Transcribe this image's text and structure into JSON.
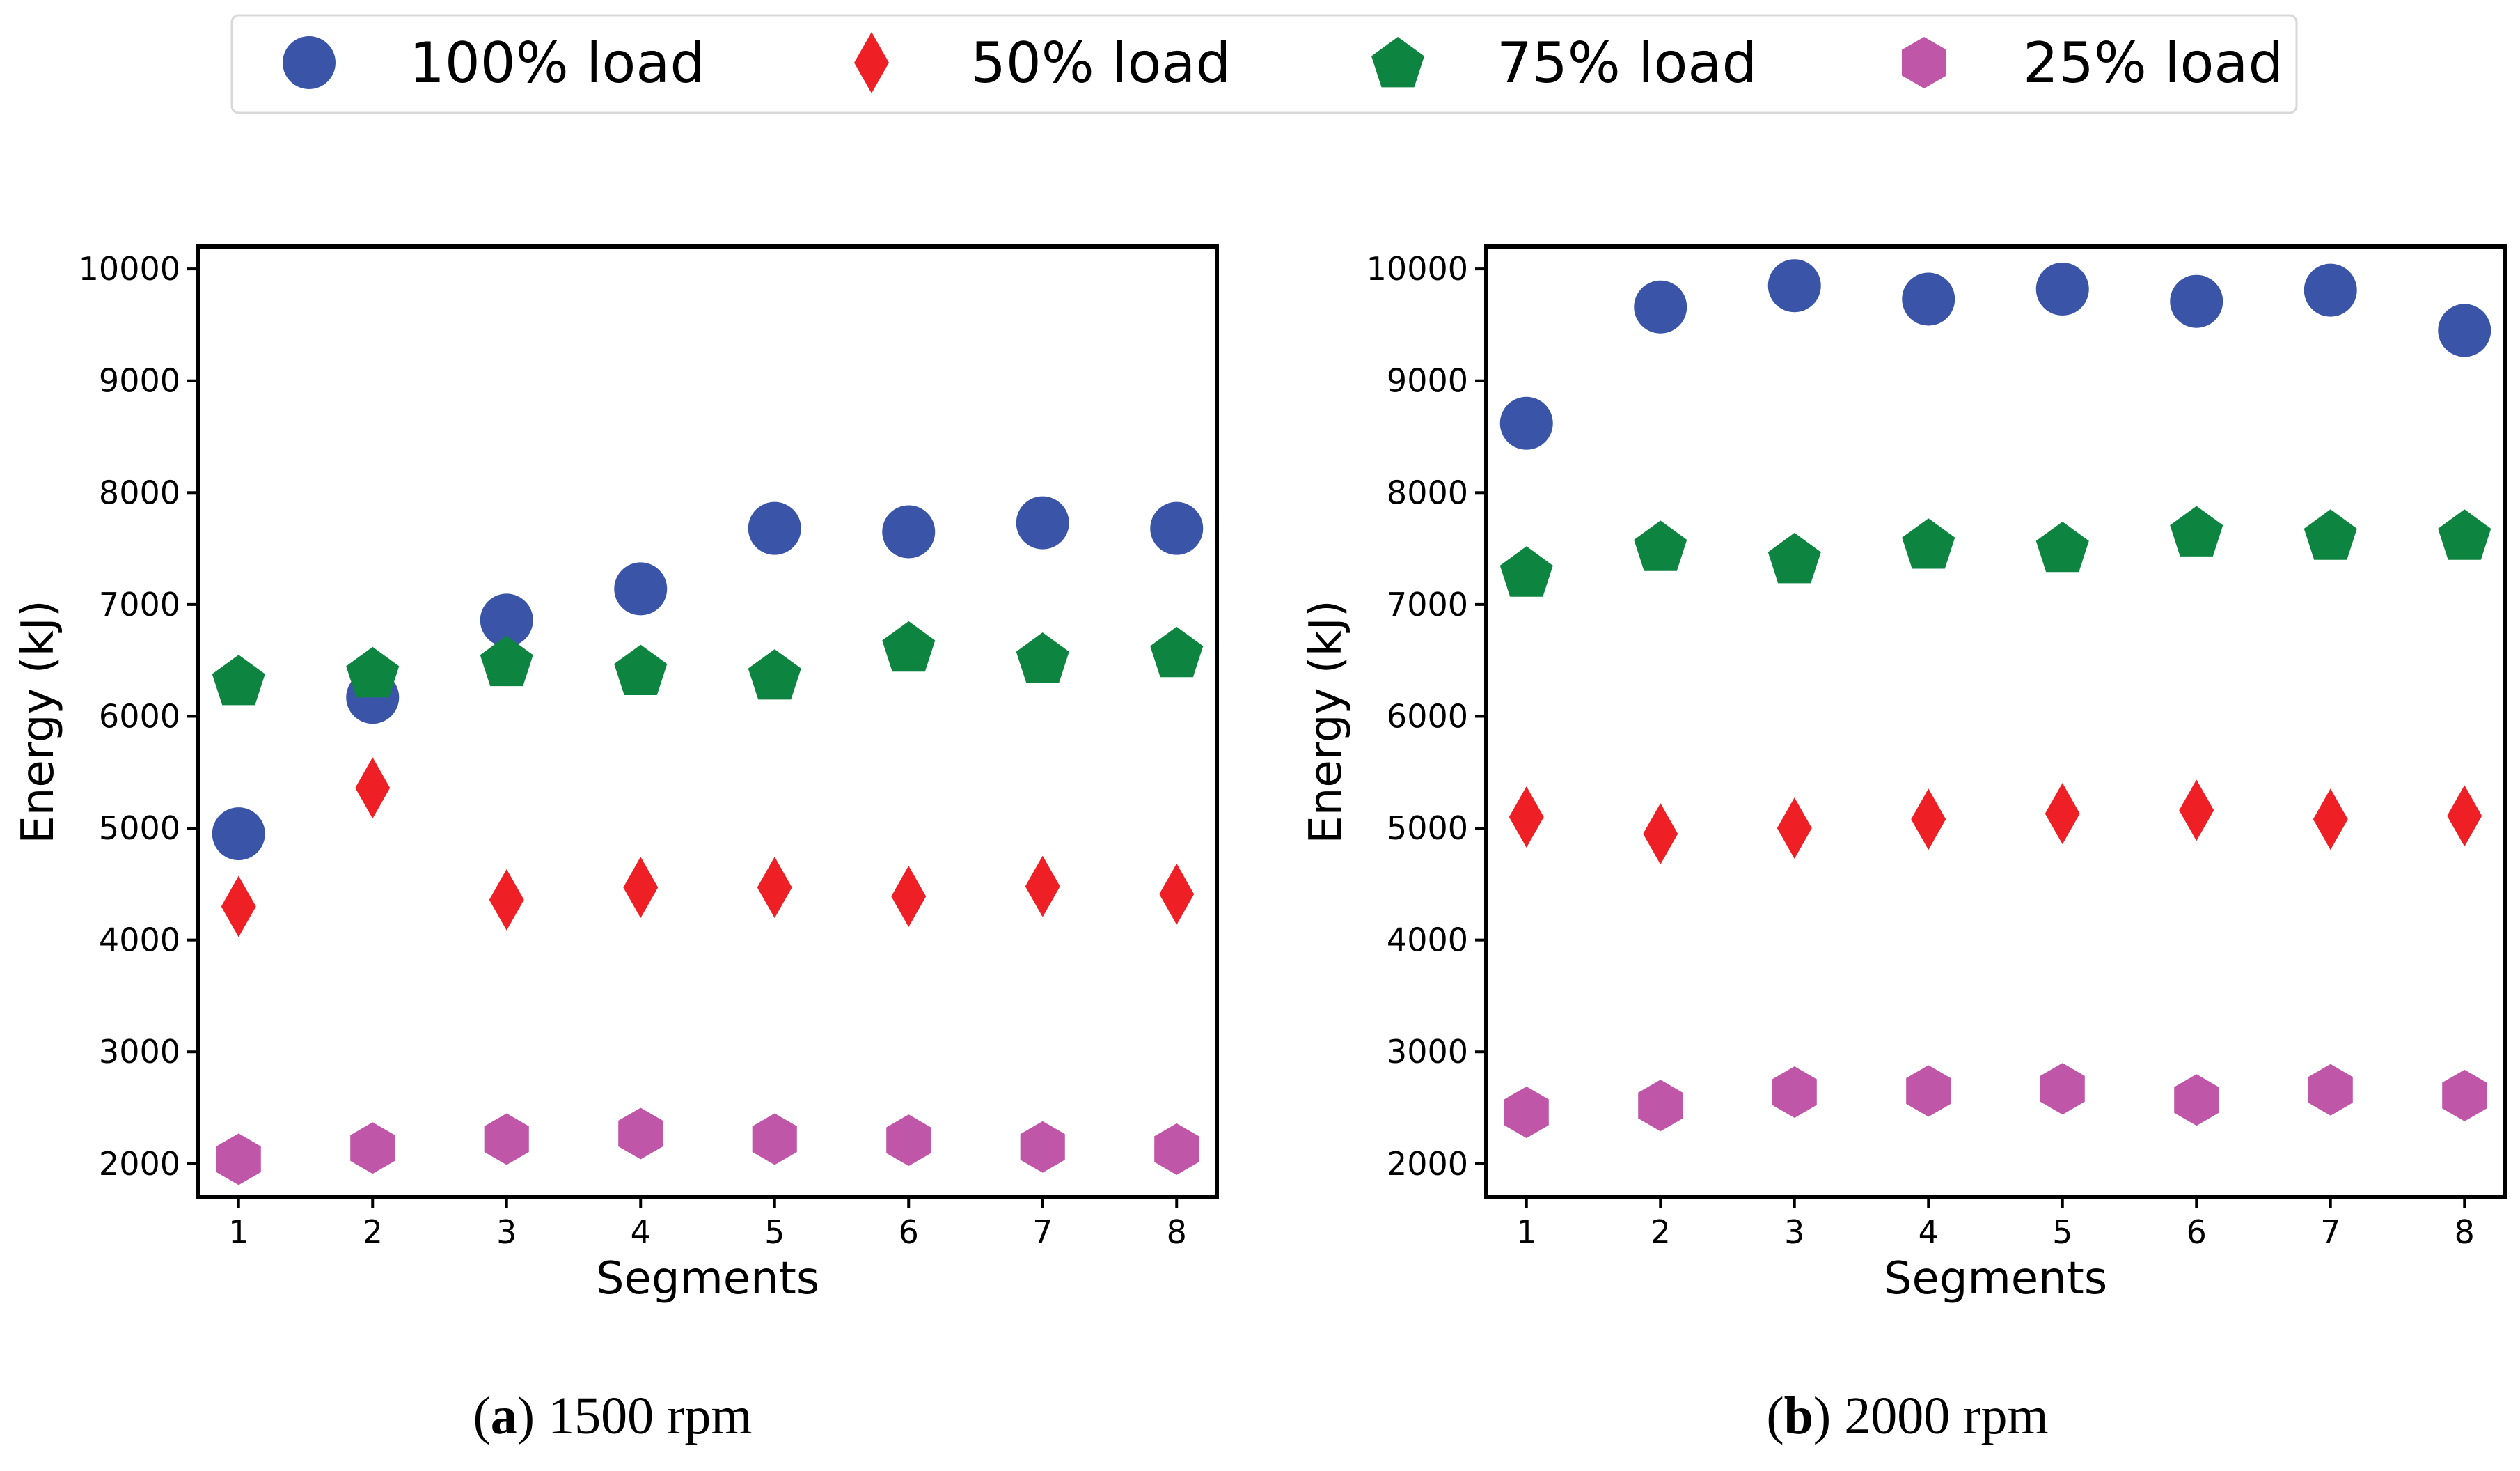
{
  "legend": {
    "entries": [
      {
        "label": "100% load",
        "series": "100% load",
        "marker": "circle",
        "color": "#3a55a8"
      },
      {
        "label": "50% load",
        "series": "50% load",
        "marker": "diamond",
        "color": "#ee2026"
      },
      {
        "label": "75% load",
        "series": "75% load",
        "marker": "pentagon",
        "color": "#0d8540"
      },
      {
        "label": "25% load",
        "series": "25% load",
        "marker": "hexagon",
        "color": "#c056a8"
      }
    ]
  },
  "captions": [
    {
      "letter": "a",
      "open": "(",
      "close": ")",
      "text": " 1500 rpm"
    },
    {
      "letter": "b",
      "open": "(",
      "close": ")",
      "text": " 2000 rpm"
    }
  ],
  "chart_data": [
    {
      "type": "scatter",
      "title": "(a) 1500 rpm",
      "xlabel": "Segments",
      "ylabel": "Energy (kJ)",
      "x": [
        1,
        2,
        3,
        4,
        5,
        6,
        7,
        8
      ],
      "xlim": [
        0.7,
        8.3
      ],
      "ylim": [
        1700,
        10200
      ],
      "xticks": [
        "1",
        "2",
        "3",
        "4",
        "5",
        "6",
        "7",
        "8"
      ],
      "yticks": [
        2000,
        3000,
        4000,
        5000,
        6000,
        7000,
        8000,
        9000,
        10000
      ],
      "grid": false,
      "series": [
        {
          "name": "100% load",
          "marker": "circle",
          "color": "#3a55a8",
          "values": [
            4950,
            6170,
            6860,
            7140,
            7680,
            7650,
            7730,
            7680
          ]
        },
        {
          "name": "50% load",
          "marker": "diamond",
          "color": "#ee2026",
          "values": [
            4300,
            5360,
            4360,
            4470,
            4470,
            4390,
            4480,
            4410
          ]
        },
        {
          "name": "75% load",
          "marker": "pentagon",
          "color": "#0d8540",
          "values": [
            6320,
            6390,
            6490,
            6410,
            6370,
            6620,
            6520,
            6570
          ]
        },
        {
          "name": "25% load",
          "marker": "hexagon",
          "color": "#c056a8",
          "values": [
            2040,
            2140,
            2220,
            2270,
            2220,
            2210,
            2150,
            2130
          ]
        }
      ]
    },
    {
      "type": "scatter",
      "title": "(b) 2000 rpm",
      "xlabel": "Segments",
      "ylabel": "Energy (kJ)",
      "x": [
        1,
        2,
        3,
        4,
        5,
        6,
        7,
        8
      ],
      "xlim": [
        0.7,
        8.3
      ],
      "ylim": [
        1700,
        10200
      ],
      "xticks": [
        "1",
        "2",
        "3",
        "4",
        "5",
        "6",
        "7",
        "8"
      ],
      "yticks": [
        2000,
        3000,
        4000,
        5000,
        6000,
        7000,
        8000,
        9000,
        10000
      ],
      "grid": false,
      "series": [
        {
          "name": "100% load",
          "marker": "circle",
          "color": "#3a55a8",
          "values": [
            8620,
            9660,
            9850,
            9730,
            9820,
            9710,
            9810,
            9450
          ]
        },
        {
          "name": "50% load",
          "marker": "diamond",
          "color": "#ee2026",
          "values": [
            5100,
            4950,
            5000,
            5080,
            5130,
            5160,
            5080,
            5110
          ]
        },
        {
          "name": "75% load",
          "marker": "pentagon",
          "color": "#0d8540",
          "values": [
            7290,
            7520,
            7410,
            7540,
            7510,
            7650,
            7620,
            7620
          ]
        },
        {
          "name": "25% load",
          "marker": "hexagon",
          "color": "#c056a8",
          "values": [
            2460,
            2520,
            2640,
            2650,
            2670,
            2570,
            2660,
            2610
          ]
        }
      ]
    }
  ]
}
